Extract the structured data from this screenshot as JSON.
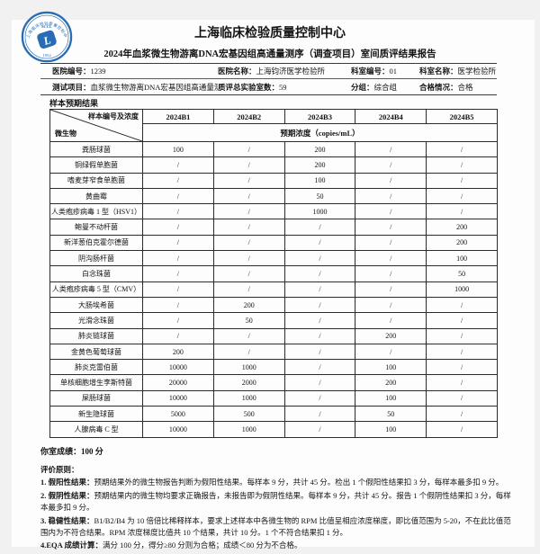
{
  "header": {
    "org_name": "上海临床检验质量控制中心",
    "report_title": "2024年血浆微生物游离DNA宏基因组高通量测序（调查项目）室间质评结果报告",
    "logo": {
      "ring_text": "上海临床检验质量控制中心",
      "sccl": "SCCL",
      "year": "1954",
      "color": "#2a6cb3"
    }
  },
  "info": {
    "row1": [
      {
        "label": "医院编号：",
        "value": "1239"
      },
      {
        "label": "医院名称：",
        "value": "上海钧济医学检验所"
      },
      {
        "label": "科室编号：",
        "value": "01"
      },
      {
        "label": "科室名称：",
        "value": "医学检验所"
      }
    ],
    "row2": [
      {
        "label": "测试项目：",
        "value": "血浆微生物游离DNA宏基因组高通量测序"
      },
      {
        "label": "质评总实验室数：",
        "value": "59"
      },
      {
        "label": "分组：",
        "value": "综合组"
      },
      {
        "label": "合格情况：",
        "value": "合格"
      }
    ]
  },
  "section_title": "样本预期结果",
  "table": {
    "corner": {
      "top_right": "样本编号及浓度",
      "bottom_left": "微生物"
    },
    "columns": [
      "2024B1",
      "2024B2",
      "2024B3",
      "2024B4",
      "2024B5"
    ],
    "subheader": "预期浓度（copies/mL）",
    "rows": [
      {
        "name": "粪肠球菌",
        "values": [
          "100",
          "/",
          "200",
          "/",
          "/"
        ]
      },
      {
        "name": "铜绿假单胞菌",
        "values": [
          "/",
          "/",
          "200",
          "/",
          "/"
        ]
      },
      {
        "name": "嗜麦芽窄食单胞菌",
        "values": [
          "/",
          "/",
          "100",
          "/",
          "/"
        ]
      },
      {
        "name": "黄曲霉",
        "values": [
          "/",
          "/",
          "50",
          "/",
          "/"
        ]
      },
      {
        "name": "人类疱疹病毒 1 型（HSV1）",
        "values": [
          "/",
          "/",
          "1000",
          "/",
          "/"
        ]
      },
      {
        "name": "鲍曼不动杆菌",
        "values": [
          "/",
          "/",
          "/",
          "/",
          "200"
        ]
      },
      {
        "name": "新洋葱伯克霍尔德菌",
        "values": [
          "/",
          "/",
          "/",
          "/",
          "200"
        ]
      },
      {
        "name": "阴沟肠杆菌",
        "values": [
          "/",
          "/",
          "/",
          "/",
          "100"
        ]
      },
      {
        "name": "白念珠菌",
        "values": [
          "/",
          "/",
          "/",
          "/",
          "50"
        ]
      },
      {
        "name": "人类疱疹病毒 5 型（CMV）",
        "values": [
          "/",
          "/",
          "/",
          "/",
          "1000"
        ]
      },
      {
        "name": "大肠埃希菌",
        "values": [
          "/",
          "200",
          "/",
          "/",
          "/"
        ]
      },
      {
        "name": "光滑念珠菌",
        "values": [
          "/",
          "50",
          "/",
          "/",
          "/"
        ]
      },
      {
        "name": "肺炎链球菌",
        "values": [
          "/",
          "/",
          "/",
          "200",
          "/"
        ]
      },
      {
        "name": "金黄色葡萄球菌",
        "values": [
          "200",
          "/",
          "/",
          "/",
          "/"
        ]
      },
      {
        "name": "肺炎克雷伯菌",
        "values": [
          "10000",
          "1000",
          "/",
          "100",
          "/"
        ]
      },
      {
        "name": "单核细胞增生李斯特菌",
        "values": [
          "20000",
          "2000",
          "/",
          "200",
          "/"
        ]
      },
      {
        "name": "屎肠球菌",
        "values": [
          "10000",
          "1000",
          "/",
          "100",
          "/"
        ]
      },
      {
        "name": "新生隐球菌",
        "values": [
          "5000",
          "500",
          "/",
          "50",
          "/"
        ]
      },
      {
        "name": "人腺病毒 C 型",
        "values": [
          "10000",
          "1000",
          "/",
          "100",
          "/"
        ]
      }
    ]
  },
  "score_line": "你室成绩：100 分",
  "principles": {
    "title": "评价原则：",
    "items": [
      {
        "lead": "1. 假阳性结果：",
        "text": "预期结果外的微生物报告判断为假阳性结果。每样本 9 分，共计 45 分。检出 1 个假阳性结果扣 3 分，每样本最多扣 9 分。"
      },
      {
        "lead": "2. 假阴性结果：",
        "text": "预期结果内的微生物均要求正确报告，未报告即为假阴性结果。每样本 9 分，共计 45 分。报告 1 个假阴性结果扣 3 分，每样本最多扣 9 分。"
      },
      {
        "lead": "3. 稳健性结果：",
        "text": "B1/B2/B4 为 10 倍倍比稀释样本，要求上述样本中各微生物的 RPM 比值呈相应浓度梯度，即比值范围为 5-20，不在此比值范围内为不符合结果。RPM 浓度梯度比值共 10 个结果，共计 10 分。1 个不符合结果扣 1 分。"
      },
      {
        "lead": "4.EQA 成绩计算：",
        "text": "满分 100 分，得分≥80 分则为合格；成绩＜80 分为不合格。"
      }
    ]
  }
}
